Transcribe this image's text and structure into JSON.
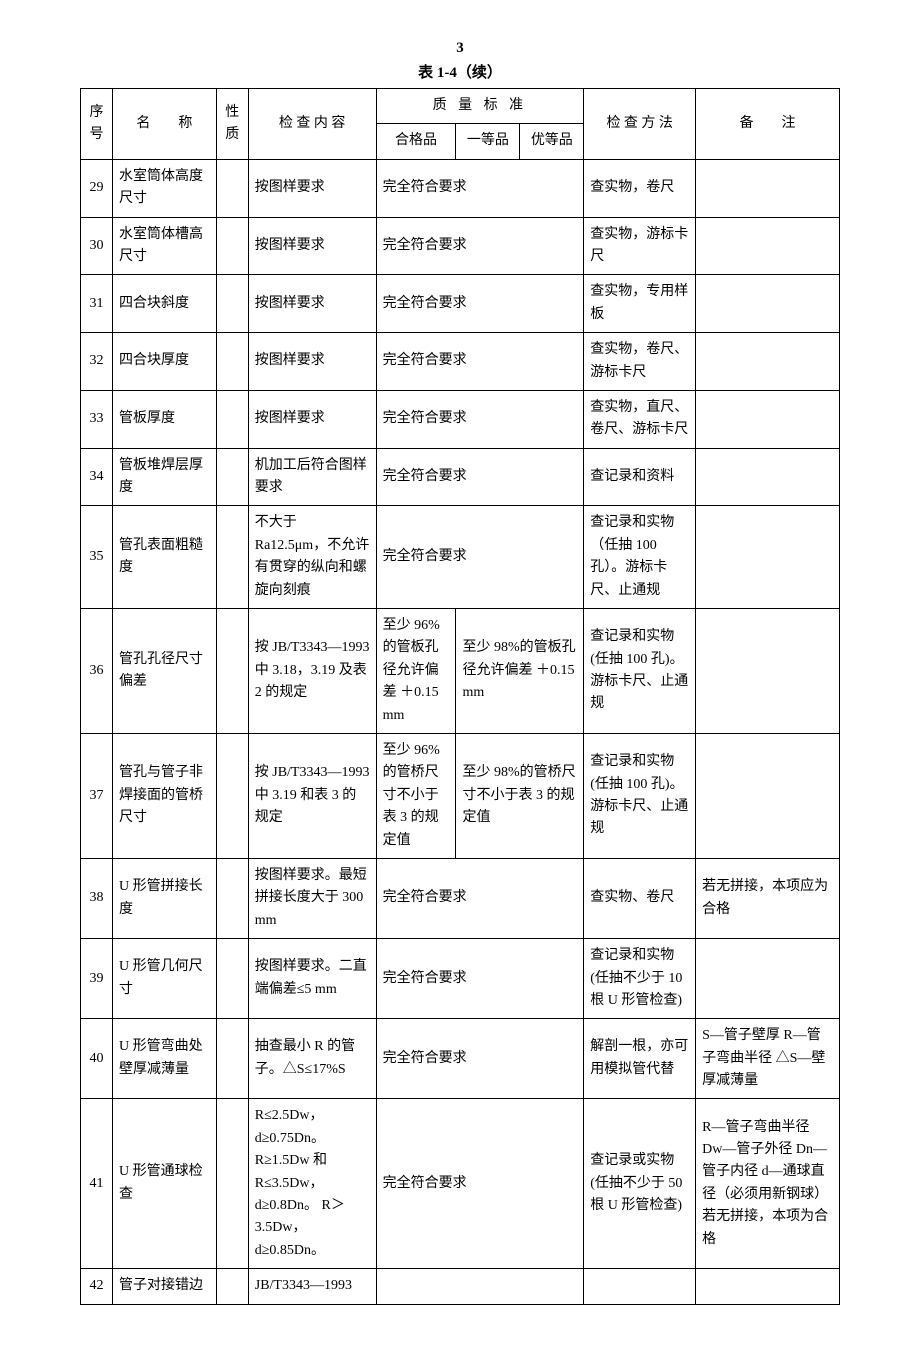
{
  "pageNumber": "3",
  "tableTitle": "表 1-4（续）",
  "headers": {
    "seq": "序号",
    "name": "名　　称",
    "prop": "性质",
    "insp": "检 查 内 容",
    "quality": "质 量 标 准",
    "q1": "合格品",
    "q2": "一等品",
    "q3": "优等品",
    "method": "检 查 方 法",
    "note": "备　　注"
  },
  "rows": [
    {
      "seq": "29",
      "name": "水室筒体高度尺寸",
      "prop": "",
      "insp": "按图样要求",
      "qMerged": "完全符合要求",
      "method": "查实物，卷尺",
      "note": ""
    },
    {
      "seq": "30",
      "name": "水室筒体槽高尺寸",
      "prop": "",
      "insp": "按图样要求",
      "qMerged": "完全符合要求",
      "method": "查实物，游标卡尺",
      "note": ""
    },
    {
      "seq": "31",
      "name": "四合块斜度",
      "prop": "",
      "insp": "按图样要求",
      "qMerged": "完全符合要求",
      "method": "查实物，专用样板",
      "note": ""
    },
    {
      "seq": "32",
      "name": "四合块厚度",
      "prop": "",
      "insp": "按图样要求",
      "qMerged": "完全符合要求",
      "method": "查实物，卷尺、游标卡尺",
      "note": ""
    },
    {
      "seq": "33",
      "name": "管板厚度",
      "prop": "",
      "insp": "按图样要求",
      "qMerged": "完全符合要求",
      "method": "查实物，直尺、卷尺、游标卡尺",
      "note": ""
    },
    {
      "seq": "34",
      "name": "管板堆焊层厚度",
      "prop": "",
      "insp": "机加工后符合图样要求",
      "qMerged": "完全符合要求",
      "method": "查记录和资料",
      "note": ""
    },
    {
      "seq": "35",
      "name": "管孔表面粗糙度",
      "prop": "",
      "insp": "不大于 Ra12.5μm，不允许有贯穿的纵向和螺旋向刻痕",
      "qMerged": "完全符合要求",
      "method": "查记录和实物（任抽 100 孔）。游标卡尺、止通规",
      "note": ""
    },
    {
      "seq": "36",
      "name": "管孔孔径尺寸偏差",
      "prop": "",
      "insp": "按 JB/T3343—1993 中 3.18，3.19 及表 2 的规定",
      "q1": "至少 96% 的管板孔径允许偏差 ＋0.15 mm",
      "q23": "至少 98%的管板孔径允许偏差 ＋0.15 mm",
      "method": "查记录和实物 (任抽 100 孔)。游标卡尺、止通规",
      "note": ""
    },
    {
      "seq": "37",
      "name": "管孔与管子非焊接面的管桥尺寸",
      "prop": "",
      "insp": "按 JB/T3343—1993 中 3.19 和表 3 的规定",
      "q1": "至少 96% 的管桥尺寸不小于表 3 的规定值",
      "q23": "至少 98%的管桥尺寸不小于表 3 的规定值",
      "method": "查记录和实物 (任抽 100 孔)。游标卡尺、止通规",
      "note": ""
    },
    {
      "seq": "38",
      "name": "U 形管拼接长度",
      "prop": "",
      "insp": "按图样要求。最短拼接长度大于 300 mm",
      "qMerged": "完全符合要求",
      "method": "查实物、卷尺",
      "note": "若无拼接，本项应为合格"
    },
    {
      "seq": "39",
      "name": "U 形管几何尺寸",
      "prop": "",
      "insp": "按图样要求。二直端偏差≤5 mm",
      "qMerged": "完全符合要求",
      "method": "查记录和实物 (任抽不少于 10 根 U 形管检查)",
      "note": ""
    },
    {
      "seq": "40",
      "name": "U 形管弯曲处壁厚减薄量",
      "prop": "",
      "insp": "抽查最小 R 的管子。△S≤17%S",
      "qMerged": "完全符合要求",
      "method": "解剖一根，亦可用模拟管代替",
      "note": "S—管子壁厚 R—管子弯曲半径 △S—壁厚减薄量"
    },
    {
      "seq": "41",
      "name": "U 形管通球检查",
      "prop": "",
      "insp": "R≤2.5Dw， d≥0.75Dn。 R≥1.5Dw 和 R≤3.5Dw， d≥0.8Dn。 R＞3.5Dw， d≥0.85Dn。",
      "qMerged": "完全符合要求",
      "method": "查记录或实物 (任抽不少于 50 根 U 形管检查)",
      "note": "R—管子弯曲半径 Dw—管子外径 Dn—管子内径 d—通球直径（必须用新钢球）若无拼接，本项为合格"
    },
    {
      "seq": "42",
      "name": "管子对接错边",
      "prop": "",
      "insp": "JB/T3343—1993",
      "qMerged": "",
      "method": "",
      "note": ""
    }
  ]
}
